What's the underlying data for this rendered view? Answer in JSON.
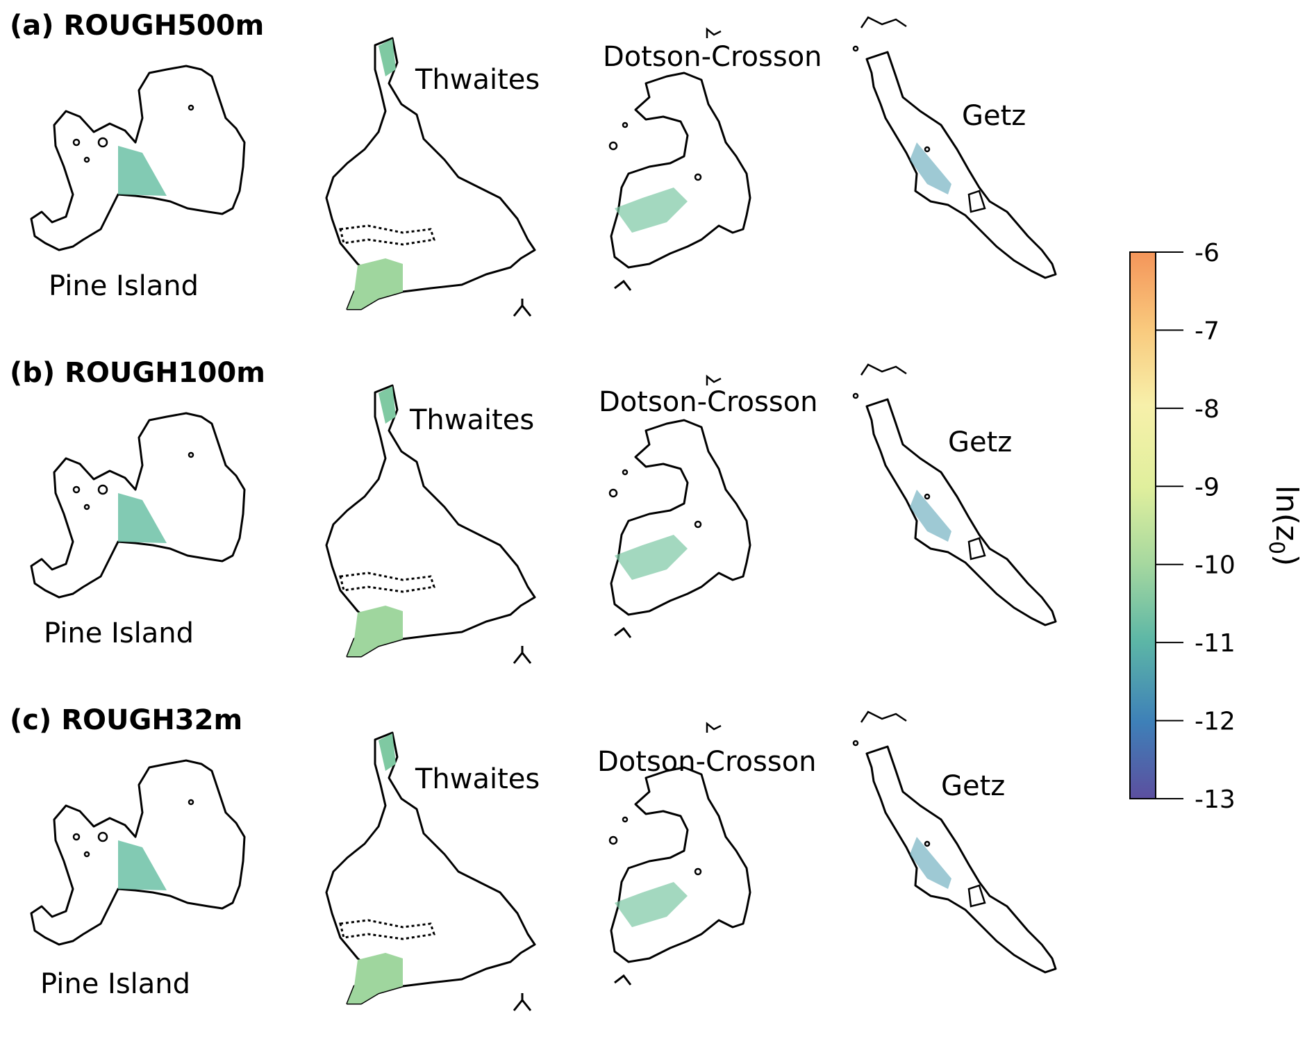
{
  "rows": [
    {
      "title": "(a) ROUGH500m",
      "labels": {
        "pine": "Pine Island",
        "thwaites": "Thwaites",
        "dotson": "Dotson-Crosson",
        "getz": "Getz"
      }
    },
    {
      "title": "(b) ROUGH100m",
      "labels": {
        "pine": "Pine Island",
        "thwaites": "Thwaites",
        "dotson": "Dotson-Crosson",
        "getz": "Getz"
      }
    },
    {
      "title": "(c) ROUGH32m",
      "labels": {
        "pine": "Pine Island",
        "thwaites": "Thwaites",
        "dotson": "Dotson-Crosson",
        "getz": "Getz"
      }
    }
  ],
  "colorbar": {
    "label_prefix": "ln(z",
    "label_sub": "0",
    "label_suffix": ")",
    "min": -13,
    "max": -6,
    "ticks": [
      "-6",
      "-7",
      "-8",
      "-9",
      "-10",
      "-11",
      "-12",
      "-13"
    ],
    "colormap": "Spectral_r",
    "colors": [
      "#f4955a",
      "#f9c97d",
      "#f7f0aa",
      "#e0ef9d",
      "#a6d89f",
      "#5db7a6",
      "#3e80b8",
      "#5c4f9f"
    ]
  }
}
